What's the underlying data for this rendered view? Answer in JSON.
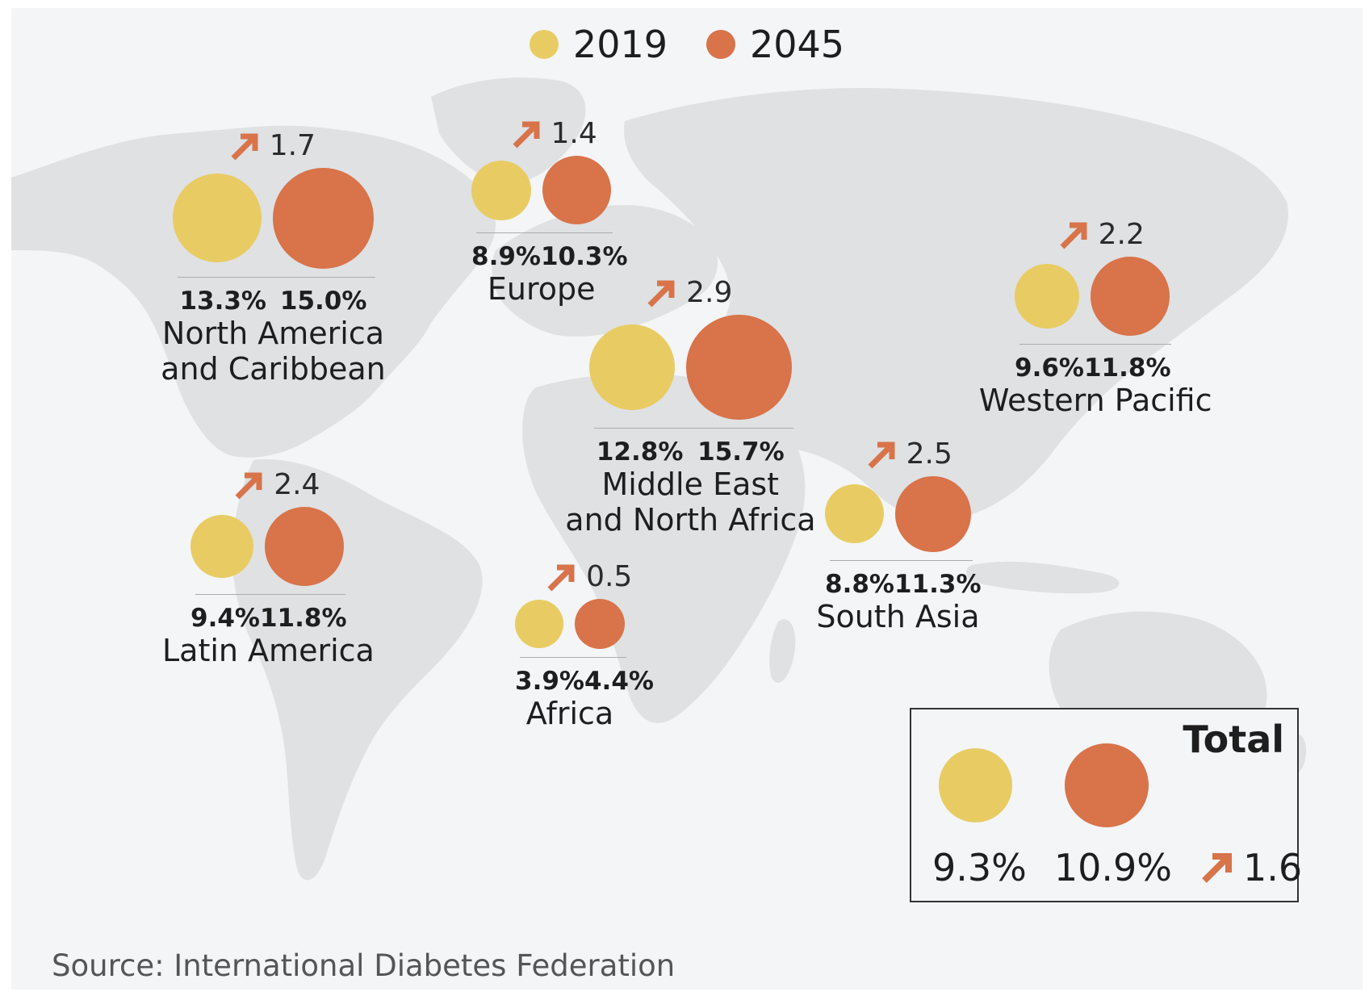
{
  "colors": {
    "y2019": "#e8cc63",
    "y2045": "#d8734a",
    "arrow": "#d8734a",
    "land": "#dfe1e3"
  },
  "legend": [
    {
      "label": "2019",
      "color_key": "y2019"
    },
    {
      "label": "2045",
      "color_key": "y2045"
    }
  ],
  "regions": [
    {
      "name": "North America\nand Caribbean",
      "pct_2019": "13.3%",
      "pct_2045": "15.0%",
      "increase": "1.7",
      "value_2019": 13.3,
      "value_2045": 15.0
    },
    {
      "name": "Europe",
      "pct_2019": "8.9%",
      "pct_2045": "10.3%",
      "increase": "1.4",
      "value_2019": 8.9,
      "value_2045": 10.3
    },
    {
      "name": "Middle East\nand North Africa",
      "pct_2019": "12.8%",
      "pct_2045": "15.7%",
      "increase": "2.9",
      "value_2019": 12.8,
      "value_2045": 15.7
    },
    {
      "name": "Western Pacific",
      "pct_2019": "9.6%",
      "pct_2045": "11.8%",
      "increase": "2.2",
      "value_2019": 9.6,
      "value_2045": 11.8
    },
    {
      "name": "Latin America",
      "pct_2019": "9.4%",
      "pct_2045": "11.8%",
      "increase": "2.4",
      "value_2019": 9.4,
      "value_2045": 11.8
    },
    {
      "name": "Africa",
      "pct_2019": "3.9%",
      "pct_2045": "4.4%",
      "increase": "0.5",
      "value_2019": 3.9,
      "value_2045": 4.4
    },
    {
      "name": "South Asia",
      "pct_2019": "8.8%",
      "pct_2045": "11.3%",
      "increase": "2.5",
      "value_2019": 8.8,
      "value_2045": 11.3
    }
  ],
  "total": {
    "title": "Total",
    "pct_2019": "9.3%",
    "pct_2045": "10.9%",
    "increase": "1.6",
    "value_2019": 9.3,
    "value_2045": 10.9
  },
  "source": "Source: International Diabetes Federation"
}
